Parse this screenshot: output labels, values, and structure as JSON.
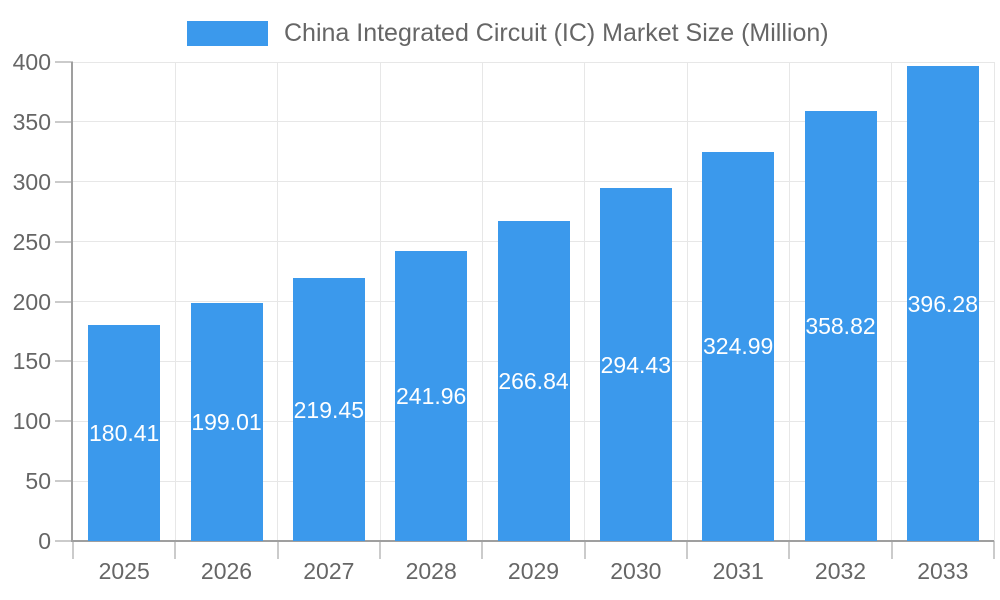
{
  "legend": {
    "label": "China Integrated Circuit (IC) Market Size (Million)"
  },
  "colors": {
    "bar": "#3b99ec",
    "grid": "#e7e7e7",
    "axis": "#9f9f9f",
    "tick": "#cbcbcb",
    "label": "#666666",
    "value_label": "#ffffff",
    "background": "#ffffff"
  },
  "chart_data": {
    "type": "bar",
    "title": "China Integrated Circuit (IC) Market Size (Million)",
    "categories": [
      "2025",
      "2026",
      "2027",
      "2028",
      "2029",
      "2030",
      "2031",
      "2032",
      "2033"
    ],
    "series": [
      {
        "name": "China Integrated Circuit (IC) Market Size (Million)",
        "values": [
          180.41,
          199.01,
          219.45,
          241.96,
          266.84,
          294.43,
          324.99,
          358.82,
          396.28
        ]
      }
    ],
    "value_labels": [
      "180.41",
      "199.01",
      "219.45",
      "241.96",
      "266.84",
      "294.43",
      "324.99",
      "358.82",
      "396.28"
    ],
    "xlabel": "",
    "ylabel": "",
    "ylim": [
      0,
      400
    ],
    "ytick_interval": 50,
    "yticks": [
      "0",
      "50",
      "100",
      "150",
      "200",
      "250",
      "300",
      "350",
      "400"
    ],
    "grid": true,
    "legend_position": "top",
    "value_label_position": "inside-middle"
  }
}
